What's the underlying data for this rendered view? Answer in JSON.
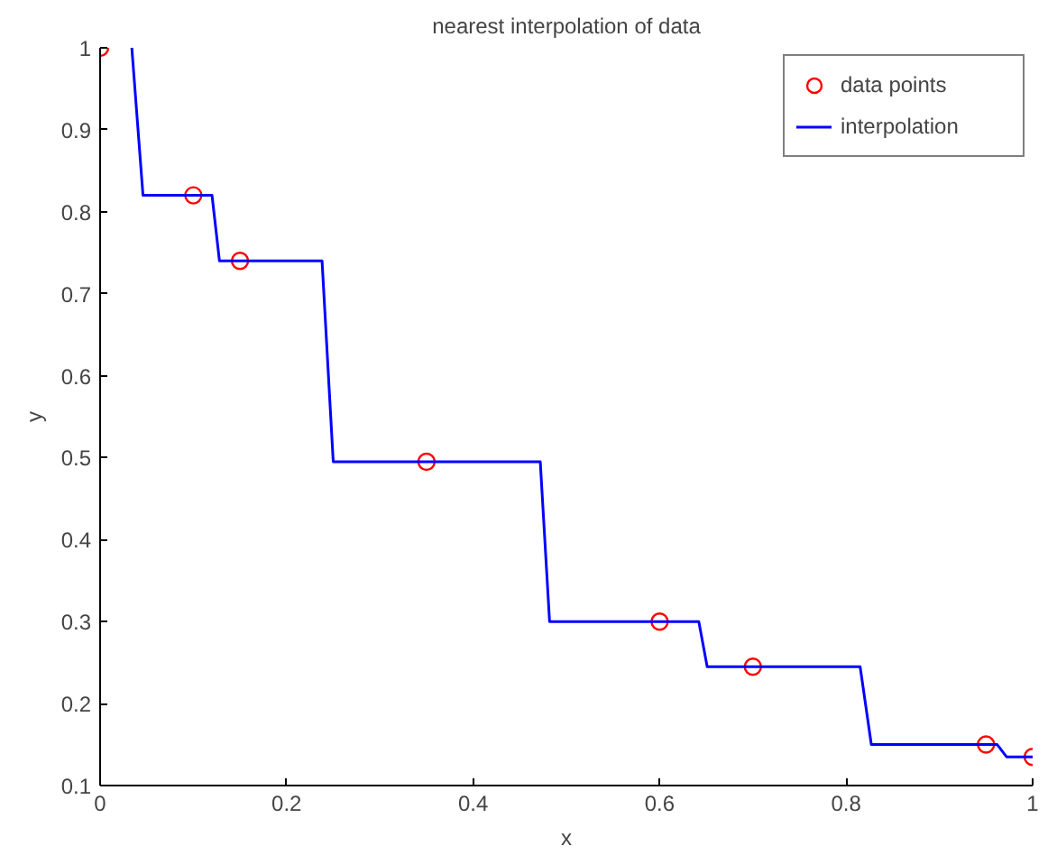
{
  "chart_data": {
    "type": "line",
    "title": "nearest interpolation of data",
    "xlabel": "x",
    "ylabel": "y",
    "xlim": [
      0,
      1
    ],
    "ylim": [
      0.1,
      1
    ],
    "xticks": [
      0,
      0.2,
      0.4,
      0.6,
      0.8,
      1
    ],
    "yticks": [
      0.1,
      0.2,
      0.3,
      0.4,
      0.5,
      0.6,
      0.7,
      0.8,
      0.9,
      1
    ],
    "grid": false,
    "legend": "top right",
    "series": [
      {
        "name": "data points",
        "type": "scatter",
        "marker": "circle",
        "color": "#ff0000",
        "x": [
          0,
          0.1,
          0.15,
          0.35,
          0.6,
          0.7,
          0.95,
          1.0
        ],
        "values": [
          1.0,
          0.82,
          0.74,
          0.495,
          0.3,
          0.245,
          0.15,
          0.135
        ]
      },
      {
        "name": "interpolation",
        "type": "line",
        "line_style": "solid",
        "color": "#0000ff",
        "x": [
          0.034,
          0.046,
          0.12,
          0.128,
          0.238,
          0.25,
          0.472,
          0.482,
          0.642,
          0.651,
          0.815,
          0.827,
          0.962,
          0.972,
          1.0
        ],
        "values": [
          1.0,
          0.82,
          0.82,
          0.74,
          0.74,
          0.495,
          0.495,
          0.3,
          0.3,
          0.245,
          0.245,
          0.15,
          0.15,
          0.135,
          0.135
        ]
      }
    ]
  }
}
